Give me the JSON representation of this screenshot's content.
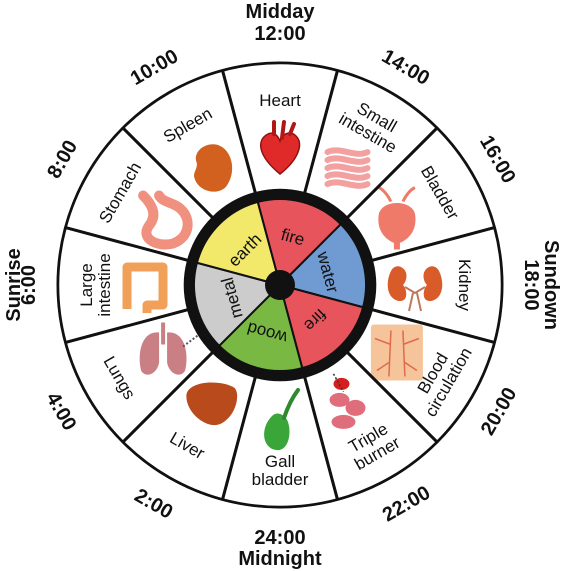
{
  "directions": {
    "top": "Midday",
    "bottom": "Midnight",
    "left": "Sunrise",
    "right": "Sundown"
  },
  "times": [
    "12:00",
    "14:00",
    "16:00",
    "18:00",
    "20:00",
    "22:00",
    "24:00",
    "2:00",
    "4:00",
    "6:00",
    "8:00",
    "10:00"
  ],
  "organs": [
    {
      "lines": [
        "Heart"
      ],
      "icon": "heart-icon",
      "color": "#e02a2a"
    },
    {
      "lines": [
        "Small",
        "intestine"
      ],
      "icon": "small-intestine-icon",
      "color": "#f2a0a0"
    },
    {
      "lines": [
        "Bladder"
      ],
      "icon": "bladder-icon",
      "color": "#f07a6a"
    },
    {
      "lines": [
        "Kidney"
      ],
      "icon": "kidney-icon",
      "color": "#d95b2a"
    },
    {
      "lines": [
        "Blood",
        "circulation"
      ],
      "icon": "blood-circulation-icon",
      "color": "#f5c49a"
    },
    {
      "lines": [
        "Triple",
        "burner"
      ],
      "icon": "triple-burner-icon",
      "color": "#e06d7c"
    },
    {
      "lines": [
        "Gall",
        "bladder"
      ],
      "icon": "gall-bladder-icon",
      "color": "#3aa63a"
    },
    {
      "lines": [
        "Liver"
      ],
      "icon": "liver-icon",
      "color": "#b84a1c"
    },
    {
      "lines": [
        "Lungs"
      ],
      "icon": "lungs-icon",
      "color": "#c97f84"
    },
    {
      "lines": [
        "Large",
        "intestine"
      ],
      "icon": "large-intestine-icon",
      "color": "#f0a058"
    },
    {
      "lines": [
        "Stomach"
      ],
      "icon": "stomach-icon",
      "color": "#f0907e"
    },
    {
      "lines": [
        "Spleen"
      ],
      "icon": "spleen-icon",
      "color": "#d2601e"
    }
  ],
  "elements": [
    {
      "name": "fire",
      "color": "#e8545c"
    },
    {
      "name": "water",
      "color": "#6f9bd2"
    },
    {
      "name": "fire",
      "color": "#e8545c"
    },
    {
      "name": "wood",
      "color": "#78b843"
    },
    {
      "name": "metal",
      "color": "#cccccc"
    },
    {
      "name": "earth",
      "color": "#f2e86a"
    }
  ]
}
